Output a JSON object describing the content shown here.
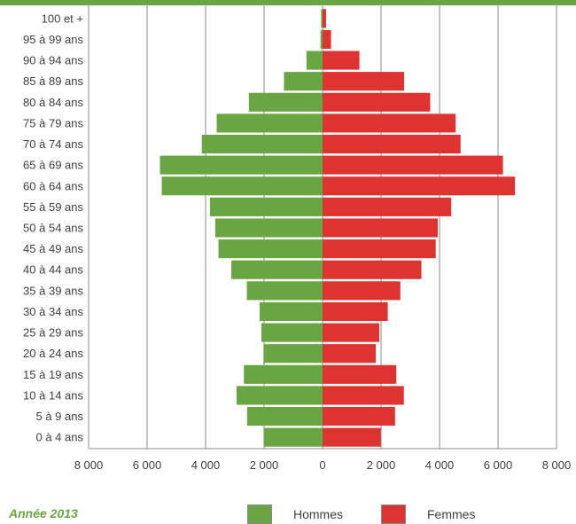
{
  "footer_label": "Année 2013",
  "colors": {
    "men": "#6aa543",
    "women": "#dd3331",
    "topbar": "#6aa543"
  },
  "legend": {
    "men": "Hommes",
    "women": "Femmes"
  },
  "chart_data": {
    "type": "bar",
    "orientation": "horizontal",
    "subtype": "population-pyramid",
    "categories": [
      "100 et +",
      "95 à 99 ans",
      "90 à 94 ans",
      "85 à 89 ans",
      "80 à 84 ans",
      "75 à 79 ans",
      "70 à 74 ans",
      "65 à 69 ans",
      "60 à 64 ans",
      "55 à 59 ans",
      "50 à 54 ans",
      "45 à 49 ans",
      "40 à 44 ans",
      "35 à 39 ans",
      "30 à 34 ans",
      "25 à 29 ans",
      "20 à 24 ans",
      "15 à 19 ans",
      "10 à 14 ans",
      "5 à 9 ans",
      "0 à 4 ans"
    ],
    "series": [
      {
        "name": "Hommes",
        "color": "#6aa543",
        "values": [
          50,
          70,
          550,
          1320,
          2520,
          3620,
          4130,
          5560,
          5500,
          3850,
          3670,
          3560,
          3120,
          2590,
          2150,
          2090,
          2020,
          2690,
          2940,
          2580,
          2010
        ]
      },
      {
        "name": "Femmes",
        "color": "#dd3331",
        "values": [
          120,
          290,
          1260,
          2790,
          3680,
          4550,
          4720,
          6170,
          6580,
          4400,
          3940,
          3870,
          3380,
          2660,
          2230,
          1940,
          1820,
          2520,
          2780,
          2480,
          1990
        ]
      }
    ],
    "xlim": [
      -8000,
      8000
    ],
    "xticks": [
      -8000,
      -6000,
      -4000,
      -2000,
      0,
      2000,
      4000,
      6000,
      8000
    ],
    "xtick_labels": [
      "8 000",
      "6 000",
      "4 000",
      "2 000",
      "0",
      "2 000",
      "4 000",
      "6 000",
      "8 000"
    ],
    "grid": "vertical",
    "legend_position": "bottom"
  }
}
